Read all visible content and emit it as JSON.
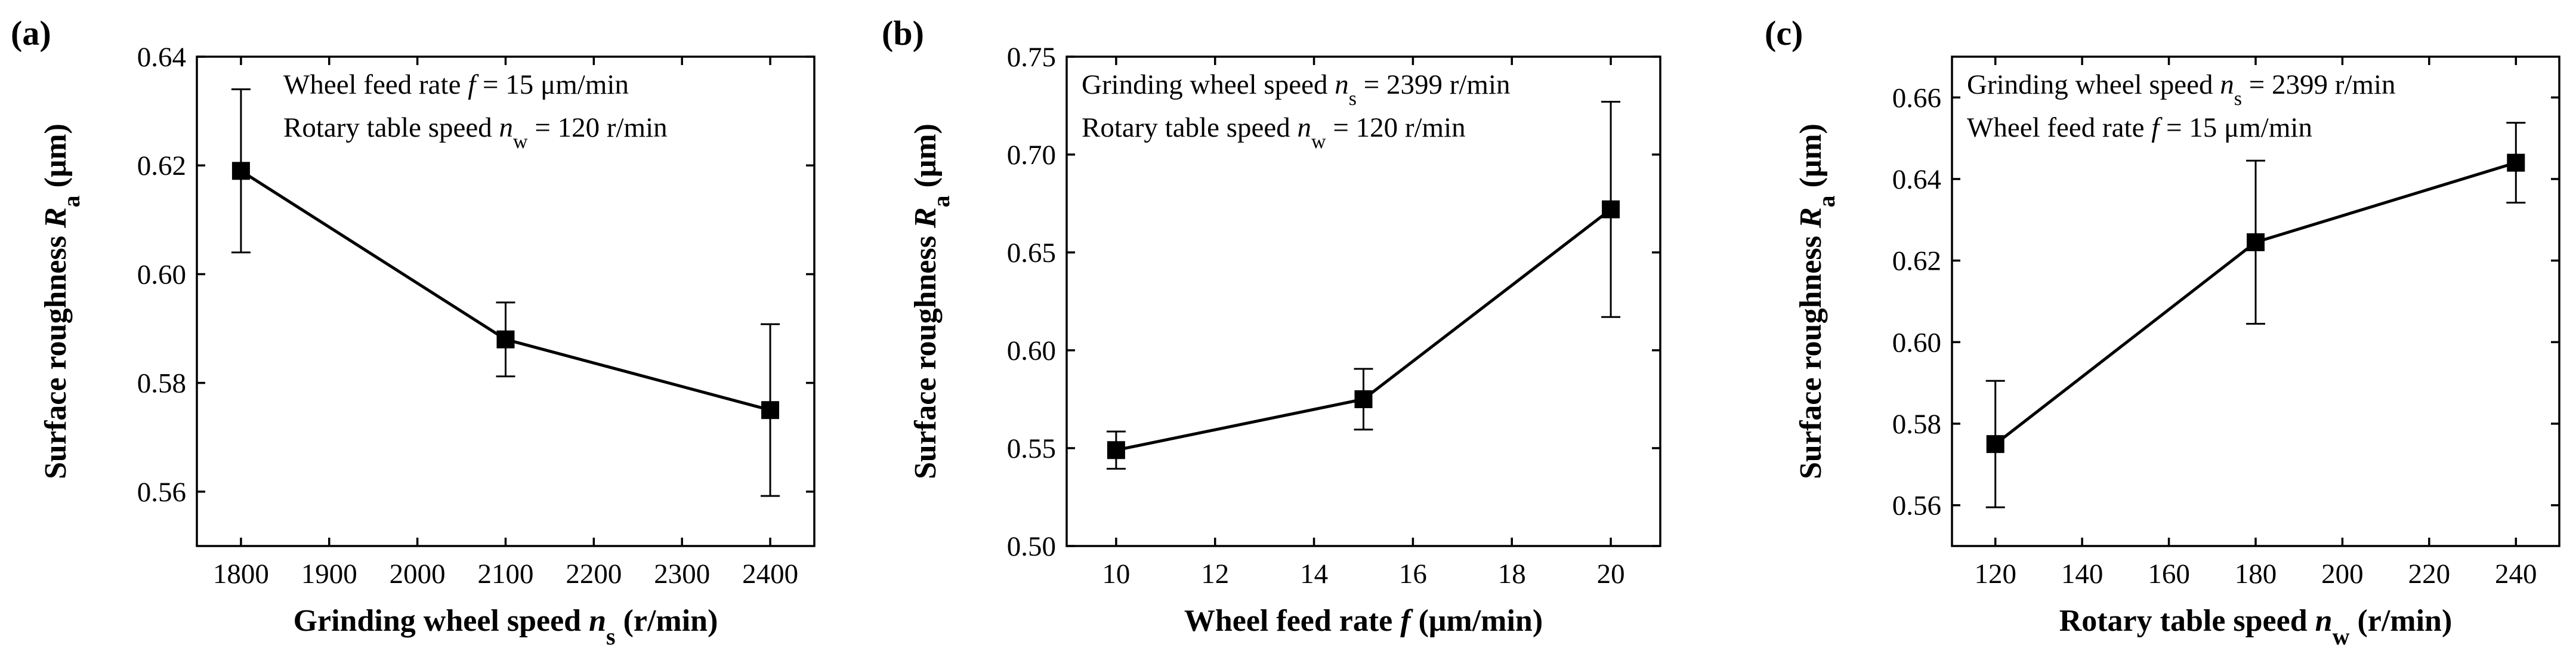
{
  "chart_data": [
    {
      "panel_label": "(a)",
      "type": "line",
      "xlabel": "Grinding wheel speed ",
      "xlabel_var": "n",
      "xlabel_sub": "s",
      "xlabel_unit": " (r/min)",
      "ylabel": "Surface roughness ",
      "ylabel_var": "R",
      "ylabel_sub": "a",
      "ylabel_unit": " (μm)",
      "xlim": [
        1750,
        2450
      ],
      "ylim": [
        0.55,
        0.64
      ],
      "xticks": [
        1800,
        1900,
        2000,
        2100,
        2200,
        2300,
        2400
      ],
      "yticks": [
        0.56,
        0.58,
        0.6,
        0.62,
        0.64
      ],
      "ytick_decimals": 2,
      "annotations": [
        {
          "pre": "Wheel feed rate ",
          "var": "f",
          "sub": "",
          "post": " = 15 μm/min"
        },
        {
          "pre": "Rotary table speed ",
          "var": "n",
          "sub": "w",
          "post": " = 120 r/min"
        }
      ],
      "series": [
        {
          "name": "Surface roughness",
          "x": [
            1800,
            2100,
            2400
          ],
          "y": [
            0.619,
            0.588,
            0.575
          ],
          "yerr": [
            0.015,
            0.0068,
            0.0158
          ]
        }
      ]
    },
    {
      "panel_label": "(b)",
      "type": "line",
      "xlabel": "Wheel feed rate ",
      "xlabel_var": "f",
      "xlabel_sub": "",
      "xlabel_unit": " (μm/min)",
      "ylabel": "Surface roughness ",
      "ylabel_var": "R",
      "ylabel_sub": "a",
      "ylabel_unit": " (μm)",
      "xlim": [
        9,
        21
      ],
      "ylim": [
        0.5,
        0.75
      ],
      "xticks": [
        10,
        12,
        14,
        16,
        18,
        20
      ],
      "yticks": [
        0.5,
        0.55,
        0.6,
        0.65,
        0.7,
        0.75
      ],
      "ytick_decimals": 2,
      "annotations": [
        {
          "pre": "Grinding wheel speed ",
          "var": "n",
          "sub": "s",
          "post": " = 2399 r/min"
        },
        {
          "pre": "Rotary table speed ",
          "var": "n",
          "sub": "w",
          "post": " = 120 r/min"
        }
      ],
      "series": [
        {
          "name": "Surface roughness",
          "x": [
            10,
            15,
            20
          ],
          "y": [
            0.549,
            0.575,
            0.672
          ],
          "yerr": [
            0.0095,
            0.0155,
            0.055
          ]
        }
      ]
    },
    {
      "panel_label": "(c)",
      "type": "line",
      "xlabel": "Rotary table speed ",
      "xlabel_var": "n",
      "xlabel_sub": "w",
      "xlabel_unit": " (r/min)",
      "ylabel": "Surface roughness ",
      "ylabel_var": "R",
      "ylabel_sub": "a",
      "ylabel_unit": " (μm)",
      "xlim": [
        110,
        250
      ],
      "ylim": [
        0.55,
        0.67
      ],
      "xticks": [
        120,
        140,
        160,
        180,
        200,
        220,
        240
      ],
      "yticks": [
        0.56,
        0.58,
        0.6,
        0.62,
        0.64,
        0.66
      ],
      "ytick_decimals": 2,
      "annotations": [
        {
          "pre": "Grinding wheel speed ",
          "var": "n",
          "sub": "s",
          "post": " = 2399 r/min"
        },
        {
          "pre": "Wheel feed rate ",
          "var": "f",
          "sub": "",
          "post": " = 15 μm/min"
        }
      ],
      "series": [
        {
          "name": "Surface roughness",
          "x": [
            120,
            180,
            240
          ],
          "y": [
            0.575,
            0.6245,
            0.644
          ],
          "yerr": [
            0.0155,
            0.02,
            0.0098
          ]
        }
      ]
    }
  ]
}
